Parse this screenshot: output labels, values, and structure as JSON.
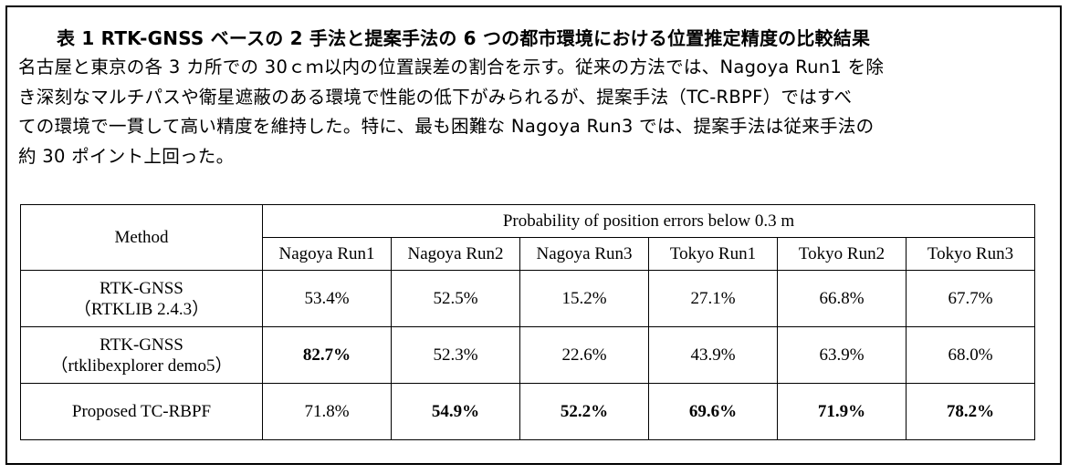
{
  "caption": {
    "title": "表 1 RTK-GNSS ベースの 2 手法と提案手法の 6 つの都市環境における位置推定精度の比較結果",
    "body_lines": [
      "名古屋と東京の各 3 カ所での 30ｃｍ以内の位置誤差の割合を示す。従来の方法では、Nagoya Run1 を除",
      "き深刻なマルチパスや衛星遮蔽のある環境で性能の低下がみられるが、提案手法（TC-RBPF）ではすべ",
      "ての環境で一貫して高い精度を維持した。特に、最も困難な Nagoya Run3 では、提案手法は従来手法の",
      "約 30 ポイント上回った。"
    ]
  },
  "table": {
    "method_header": "Method",
    "group_header": "Probability of position errors below 0.3 m",
    "columns": [
      "Nagoya Run1",
      "Nagoya Run2",
      "Nagoya Run3",
      "Tokyo Run1",
      "Tokyo Run2",
      "Tokyo Run3"
    ],
    "rows": [
      {
        "method_line1": "RTK-GNSS",
        "method_line2": "（RTKLIB 2.4.3）",
        "values": [
          "53.4%",
          "52.5%",
          "15.2%",
          "27.1%",
          "66.8%",
          "67.7%"
        ],
        "bold": [
          false,
          false,
          false,
          false,
          false,
          false
        ]
      },
      {
        "method_line1": "RTK-GNSS",
        "method_line2": "（rtklibexplorer demo5）",
        "values": [
          "82.7%",
          "52.3%",
          "22.6%",
          "43.9%",
          "63.9%",
          "68.0%"
        ],
        "bold": [
          true,
          false,
          false,
          false,
          false,
          false
        ]
      },
      {
        "method_line1": "Proposed TC-RBPF",
        "method_line2": "",
        "values": [
          "71.8%",
          "54.9%",
          "52.2%",
          "69.6%",
          "71.9%",
          "78.2%"
        ],
        "bold": [
          false,
          true,
          true,
          true,
          true,
          true
        ]
      }
    ]
  }
}
